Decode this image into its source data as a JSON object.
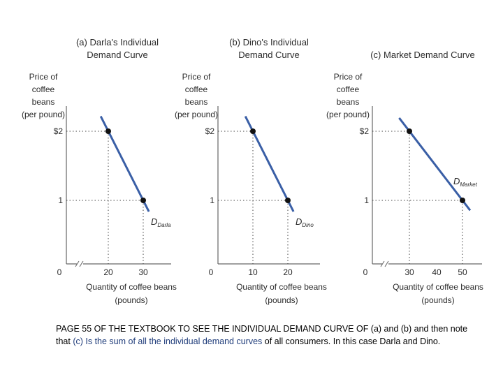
{
  "chart_data": [
    {
      "type": "line",
      "title": [
        "(a) Darla's Individual",
        "Demand Curve"
      ],
      "ylabel": [
        "Price of",
        "coffee",
        "beans",
        "(per pound)"
      ],
      "xlabel": [
        "Quantity of coffee beans",
        "(pounds)"
      ],
      "y_ticks": [
        "$2",
        "1"
      ],
      "x_ticks": [
        "0",
        "20",
        "30"
      ],
      "curve_label": {
        "main": "D",
        "sub": "Darla"
      },
      "axis_break": true,
      "series": [
        {
          "x": [
            20,
            30
          ],
          "y": [
            2,
            1
          ]
        }
      ]
    },
    {
      "type": "line",
      "title": [
        "(b) Dino's Individual",
        "Demand Curve"
      ],
      "ylabel": [
        "Price of",
        "coffee",
        "beans",
        "(per pound)"
      ],
      "xlabel": [
        "Quantity of coffee beans",
        "(pounds)"
      ],
      "y_ticks": [
        "$2",
        "1"
      ],
      "x_ticks": [
        "0",
        "10",
        "20"
      ],
      "curve_label": {
        "main": "D",
        "sub": "Dino"
      },
      "axis_break": false,
      "series": [
        {
          "x": [
            10,
            20
          ],
          "y": [
            2,
            1
          ]
        }
      ]
    },
    {
      "type": "line",
      "title": [
        "(c) Market Demand Curve"
      ],
      "ylabel": [
        "Price of",
        "coffee",
        "beans",
        "(per pound)"
      ],
      "xlabel": [
        "Quantity of coffee beans",
        "(pounds)"
      ],
      "y_ticks": [
        "$2",
        "1"
      ],
      "x_ticks": [
        "0",
        "30",
        "40",
        "50"
      ],
      "curve_label": {
        "main": "D",
        "sub": "Market"
      },
      "axis_break": true,
      "series": [
        {
          "x": [
            30,
            50
          ],
          "y": [
            2,
            1
          ]
        }
      ]
    }
  ],
  "caption": {
    "part1": "PAGE 55 OF THE TEXTBOOK TO SEE THE INDIVIDUAL DEMAND CURVE OF (a) and (b) and then note that ",
    "highlight": "(c) Is the sum of all the individual demand curves",
    "part2": " of all consumers.  In this case Darla and Dino."
  },
  "colors": {
    "curve": "#3a5fa6",
    "axis": "#666666",
    "dots": "#111111",
    "text": "#2b2b2b",
    "caption_highlight": "#1f3c7a"
  }
}
